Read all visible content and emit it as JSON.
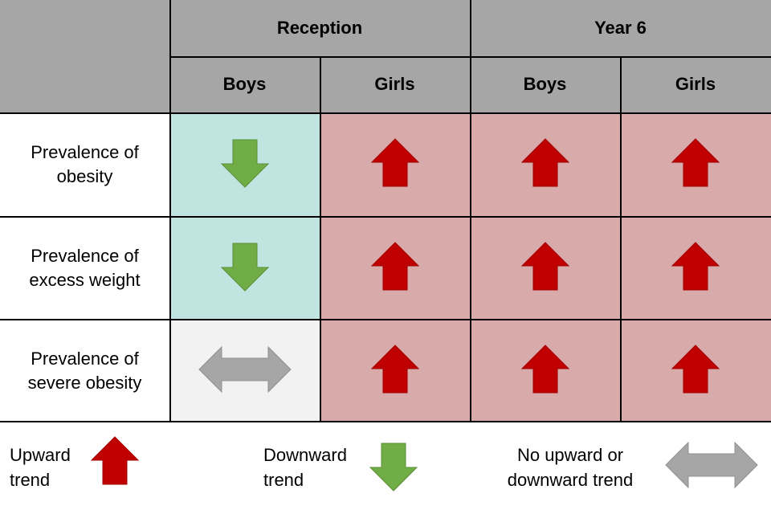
{
  "table": {
    "groups": [
      "Reception",
      "Year 6"
    ],
    "subheaders": [
      "Boys",
      "Girls",
      "Boys",
      "Girls"
    ],
    "rows": [
      {
        "label": "Prevalence of obesity",
        "trends": [
          "down",
          "up",
          "up",
          "up"
        ]
      },
      {
        "label": "Prevalence of excess weight",
        "trends": [
          "down",
          "up",
          "up",
          "up"
        ]
      },
      {
        "label": "Prevalence of severe obesity",
        "trends": [
          "none",
          "up",
          "up",
          "up"
        ]
      }
    ]
  },
  "legend": [
    {
      "label": "Upward trend",
      "trend": "up"
    },
    {
      "label": "Downward trend",
      "trend": "down"
    },
    {
      "label": "No upward or downward trend",
      "trend": "none"
    }
  ]
}
